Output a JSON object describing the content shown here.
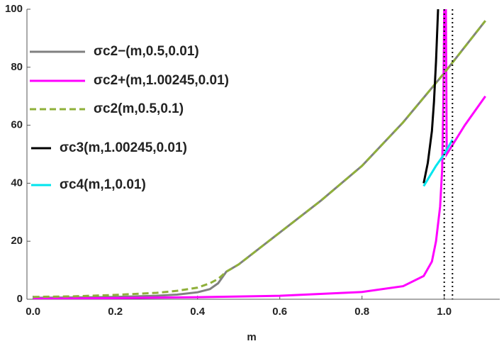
{
  "chart_data": {
    "type": "line",
    "xlabel": "m",
    "xlim": [
      -0.015,
      1.135
    ],
    "ylim": [
      0,
      100
    ],
    "xticks": [
      {
        "value": 0,
        "label": "0.0"
      },
      0.2,
      0.4,
      0.6,
      0.8,
      {
        "value": 1,
        "label": "1.0"
      }
    ],
    "yticks": [
      0,
      20,
      40,
      60,
      80,
      100
    ],
    "reference_lines": [
      1.0,
      1.02
    ],
    "series": [
      {
        "name": "σc2−(m,0.5,0.01)",
        "color": "#808080",
        "dash": false,
        "x": [
          0,
          0.1,
          0.2,
          0.3,
          0.35,
          0.4,
          0.43,
          0.45,
          0.47,
          0.5,
          0.6,
          0.7,
          0.8,
          0.9,
          1.0,
          1.1
        ],
        "values": [
          0.5,
          0.6,
          0.8,
          1.2,
          1.6,
          2.4,
          3.5,
          5.5,
          9.5,
          12,
          23,
          34,
          46,
          61,
          78,
          96
        ]
      },
      {
        "name": "σc2+(m,1.00245,0.01)",
        "color": "#ff00ff",
        "dash": false,
        "x": [
          0,
          0.2,
          0.4,
          0.6,
          0.8,
          0.9,
          0.95,
          0.97,
          0.98,
          0.99,
          0.995,
          0.998,
          1.0,
          1.004,
          1.006,
          1.05,
          1.1
        ],
        "values": [
          0.2,
          0.4,
          0.7,
          1.2,
          2.5,
          4.5,
          8,
          13,
          20,
          32,
          45,
          70,
          100,
          100,
          50,
          60,
          70
        ]
      },
      {
        "name": "σc2(m,0.5,0.1)",
        "color": "#8fb03a",
        "dash": true,
        "x": [
          0,
          0.1,
          0.2,
          0.3,
          0.35,
          0.4,
          0.43,
          0.45,
          0.47,
          0.5,
          0.6,
          0.7,
          0.8,
          0.9,
          1.0,
          1.1
        ],
        "values": [
          0.8,
          1.0,
          1.5,
          2.2,
          2.9,
          4.0,
          5.5,
          7.0,
          9.5,
          12,
          23,
          34,
          46,
          61,
          78,
          96
        ]
      },
      {
        "name": "σc3(m,1.00245,0.01)",
        "color": "#000000",
        "dash": false,
        "x": [
          0.95,
          0.96,
          0.97,
          0.975,
          0.98,
          0.985
        ],
        "values": [
          40,
          47,
          58,
          68,
          82,
          100
        ]
      },
      {
        "name": "σc4(m,1,0.01)",
        "color": "#00e5ee",
        "dash": false,
        "x": [
          0.95,
          0.98,
          1.0,
          1.02
        ],
        "values": [
          39,
          46,
          50,
          55
        ]
      }
    ]
  }
}
